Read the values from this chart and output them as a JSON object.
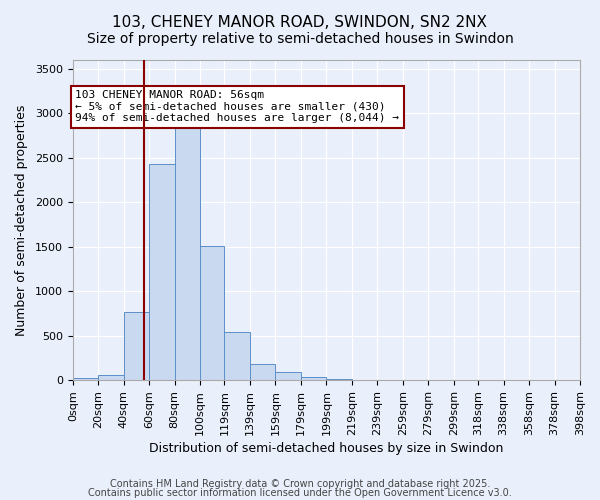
{
  "title_line1": "103, CHENEY MANOR ROAD, SWINDON, SN2 2NX",
  "title_line2": "Size of property relative to semi-detached houses in Swindon",
  "xlabel": "Distribution of semi-detached houses by size in Swindon",
  "ylabel": "Number of semi-detached properties",
  "bin_labels": [
    "0sqm",
    "20sqm",
    "40sqm",
    "60sqm",
    "80sqm",
    "100sqm",
    "119sqm",
    "139sqm",
    "159sqm",
    "179sqm",
    "199sqm",
    "219sqm",
    "239sqm",
    "259sqm",
    "279sqm",
    "299sqm",
    "318sqm",
    "338sqm",
    "358sqm",
    "378sqm",
    "398sqm"
  ],
  "bar_heights": [
    20,
    60,
    770,
    2430,
    2900,
    1510,
    540,
    185,
    90,
    35,
    10,
    5,
    3,
    2,
    1,
    1,
    0,
    0,
    0,
    0
  ],
  "bin_edges": [
    0,
    20,
    40,
    60,
    80,
    100,
    119,
    139,
    159,
    179,
    199,
    219,
    239,
    259,
    279,
    299,
    318,
    338,
    358,
    378,
    398
  ],
  "bar_color": "#c9d9f0",
  "bar_edge_color": "#5b8fc9",
  "vline_x": 56,
  "vline_color": "#8b0000",
  "annotation_text": "103 CHENEY MANOR ROAD: 56sqm\n← 5% of semi-detached houses are smaller (430)\n94% of semi-detached houses are larger (8,044) →",
  "annotation_box_color": "white",
  "annotation_box_edge": "#8b0000",
  "ylim": [
    0,
    3600
  ],
  "yticks": [
    0,
    500,
    1000,
    1500,
    2000,
    2500,
    3000,
    3500
  ],
  "background_color": "#eaf0fb",
  "grid_color": "white",
  "footer_line1": "Contains HM Land Registry data © Crown copyright and database right 2025.",
  "footer_line2": "Contains public sector information licensed under the Open Government Licence v3.0.",
  "title_fontsize": 11,
  "subtitle_fontsize": 10,
  "axis_label_fontsize": 9,
  "tick_fontsize": 8,
  "annotation_fontsize": 8,
  "footer_fontsize": 7
}
